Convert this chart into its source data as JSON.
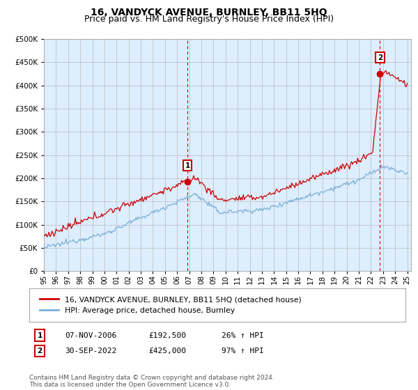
{
  "title": "16, VANDYCK AVENUE, BURNLEY, BB11 5HQ",
  "subtitle": "Price paid vs. HM Land Registry's House Price Index (HPI)",
  "ylim": [
    0,
    500000
  ],
  "yticks": [
    0,
    50000,
    100000,
    150000,
    200000,
    250000,
    300000,
    350000,
    400000,
    450000,
    500000
  ],
  "sale1_date": 2006.85,
  "sale1_price": 192500,
  "sale1_label": "1",
  "sale2_date": 2022.75,
  "sale2_price": 425000,
  "sale2_label": "2",
  "line_color_red": "#cc0000",
  "line_color_blue": "#7aafd4",
  "vline_color": "#cc0000",
  "grid_color": "#bbbbbb",
  "bg_color": "#ffffff",
  "chart_bg": "#ddeeff",
  "legend_line1": "16, VANDYCK AVENUE, BURNLEY, BB11 5HQ (detached house)",
  "legend_line2": "HPI: Average price, detached house, Burnley",
  "table_row1": [
    "1",
    "07-NOV-2006",
    "£192,500",
    "26% ↑ HPI"
  ],
  "table_row2": [
    "2",
    "30-SEP-2022",
    "£425,000",
    "97% ↑ HPI"
  ],
  "footnote": "Contains HM Land Registry data © Crown copyright and database right 2024.\nThis data is licensed under the Open Government Licence v3.0.",
  "title_fontsize": 10,
  "subtitle_fontsize": 9,
  "tick_fontsize": 7.5
}
